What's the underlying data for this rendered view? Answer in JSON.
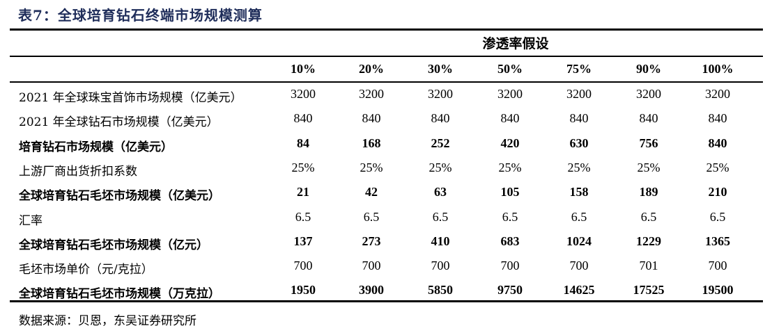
{
  "title": "表7：全球培育钻石终端市场规模测算",
  "header": {
    "group_label": "渗透率假设",
    "columns": [
      "10%",
      "20%",
      "30%",
      "50%",
      "75%",
      "90%",
      "100%"
    ]
  },
  "rows": [
    {
      "label": "2021 年全球珠宝首饰市场规模（亿美元）",
      "bold": false,
      "values": [
        "3200",
        "3200",
        "3200",
        "3200",
        "3200",
        "3200",
        "3200"
      ]
    },
    {
      "label": "2021 年全球钻石市场规模（亿美元）",
      "bold": false,
      "values": [
        "840",
        "840",
        "840",
        "840",
        "840",
        "840",
        "840"
      ]
    },
    {
      "label": "培育钻石市场规模（亿美元）",
      "bold": true,
      "values": [
        "84",
        "168",
        "252",
        "420",
        "630",
        "756",
        "840"
      ]
    },
    {
      "label": "上游厂商出货折扣系数",
      "bold": false,
      "values": [
        "25%",
        "25%",
        "25%",
        "25%",
        "25%",
        "25%",
        "25%"
      ]
    },
    {
      "label": "全球培育钻石毛坯市场规模（亿美元）",
      "bold": true,
      "values": [
        "21",
        "42",
        "63",
        "105",
        "158",
        "189",
        "210"
      ]
    },
    {
      "label": "汇率",
      "bold": false,
      "values": [
        "6.5",
        "6.5",
        "6.5",
        "6.5",
        "6.5",
        "6.5",
        "6.5"
      ]
    },
    {
      "label": "全球培育钻石毛坯市场规模（亿元）",
      "bold": true,
      "values": [
        "137",
        "273",
        "410",
        "683",
        "1024",
        "1229",
        "1365"
      ]
    },
    {
      "label": "毛坯市场单价（元/克拉）",
      "bold": false,
      "values": [
        "700",
        "700",
        "700",
        "700",
        "700",
        "701",
        "700"
      ]
    },
    {
      "label": "全球培育钻石毛坯市场规模（万克拉）",
      "bold": true,
      "values": [
        "1950",
        "3900",
        "5850",
        "9750",
        "14625",
        "17525",
        "19500"
      ]
    }
  ],
  "source": "数据来源：贝恩，东吴证券研究所"
}
